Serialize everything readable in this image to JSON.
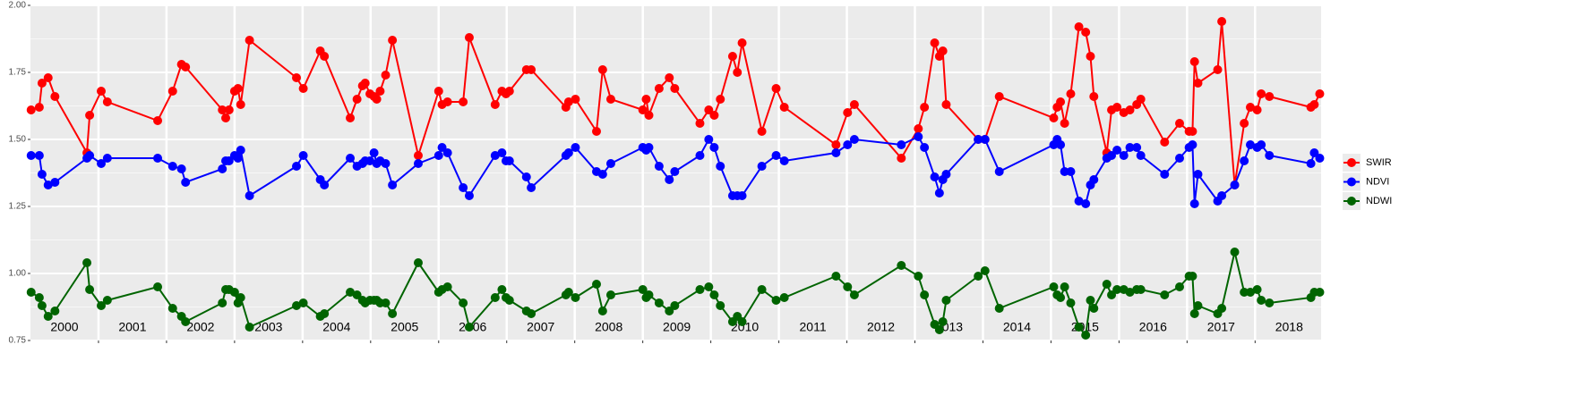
{
  "chart_data": {
    "type": "line",
    "x": [
      2000.01,
      2000.13,
      2000.17,
      2000.26,
      2000.36,
      2000.83,
      2000.87,
      2001.04,
      2001.13,
      2001.87,
      2002.09,
      2002.22,
      2002.28,
      2002.82,
      2002.87,
      2002.92,
      2003.0,
      2003.05,
      2003.09,
      2003.22,
      2003.91,
      2004.01,
      2004.26,
      2004.32,
      2004.7,
      2004.8,
      2004.88,
      2004.92,
      2004.99,
      2005.05,
      2005.09,
      2005.14,
      2005.22,
      2005.32,
      2005.7,
      2006.0,
      2006.05,
      2006.13,
      2006.36,
      2006.45,
      2006.83,
      2006.93,
      2006.99,
      2007.04,
      2007.29,
      2007.36,
      2007.87,
      2007.91,
      2008.01,
      2008.32,
      2008.41,
      2008.53,
      2009.0,
      2009.05,
      2009.09,
      2009.24,
      2009.39,
      2009.47,
      2009.84,
      2009.97,
      2010.05,
      2010.14,
      2010.32,
      2010.39,
      2010.46,
      2010.75,
      2010.96,
      2011.08,
      2011.84,
      2012.01,
      2012.11,
      2012.8,
      2013.05,
      2013.14,
      2013.29,
      2013.36,
      2013.41,
      2013.46,
      2013.93,
      2014.03,
      2014.24,
      2015.04,
      2015.09,
      2015.14,
      2015.2,
      2015.29,
      2015.41,
      2015.51,
      2015.58,
      2015.63,
      2015.82,
      2015.89,
      2015.97,
      2016.07,
      2016.16,
      2016.26,
      2016.32,
      2016.67,
      2016.89,
      2017.03,
      2017.08,
      2017.11,
      2017.16,
      2017.45,
      2017.51,
      2017.7,
      2017.84,
      2017.93,
      2018.03,
      2018.09,
      2018.21,
      2018.82,
      2018.87,
      2018.95
    ],
    "series": [
      {
        "name": "SWIR",
        "color": "#ff0000",
        "values": [
          1.61,
          1.62,
          1.71,
          1.73,
          1.66,
          1.45,
          1.59,
          1.68,
          1.64,
          1.57,
          1.68,
          1.78,
          1.77,
          1.61,
          1.58,
          1.61,
          1.68,
          1.69,
          1.63,
          1.87,
          1.73,
          1.69,
          1.83,
          1.81,
          1.58,
          1.65,
          1.7,
          1.71,
          1.67,
          1.66,
          1.65,
          1.68,
          1.74,
          1.87,
          1.44,
          1.68,
          1.63,
          1.64,
          1.64,
          1.88,
          1.63,
          1.68,
          1.67,
          1.68,
          1.76,
          1.76,
          1.62,
          1.64,
          1.65,
          1.53,
          1.76,
          1.65,
          1.61,
          1.65,
          1.59,
          1.69,
          1.73,
          1.69,
          1.56,
          1.61,
          1.59,
          1.65,
          1.81,
          1.75,
          1.86,
          1.53,
          1.69,
          1.62,
          1.48,
          1.6,
          1.63,
          1.43,
          1.54,
          1.62,
          1.86,
          1.81,
          1.83,
          1.63,
          1.5,
          1.5,
          1.66,
          1.58,
          1.62,
          1.64,
          1.56,
          1.67,
          1.92,
          1.9,
          1.81,
          1.66,
          1.45,
          1.61,
          1.62,
          1.6,
          1.61,
          1.63,
          1.65,
          1.49,
          1.56,
          1.53,
          1.53,
          1.79,
          1.71,
          1.76,
          1.94,
          1.33,
          1.56,
          1.62,
          1.61,
          1.67,
          1.66,
          1.62,
          1.63,
          1.67
        ]
      },
      {
        "name": "NDVI",
        "color": "#0000ff",
        "values": [
          1.44,
          1.44,
          1.37,
          1.33,
          1.34,
          1.43,
          1.44,
          1.41,
          1.43,
          1.43,
          1.4,
          1.39,
          1.34,
          1.39,
          1.42,
          1.42,
          1.44,
          1.43,
          1.46,
          1.29,
          1.4,
          1.44,
          1.35,
          1.33,
          1.43,
          1.4,
          1.41,
          1.42,
          1.42,
          1.45,
          1.41,
          1.42,
          1.41,
          1.33,
          1.41,
          1.44,
          1.47,
          1.45,
          1.32,
          1.29,
          1.44,
          1.45,
          1.42,
          1.42,
          1.36,
          1.32,
          1.44,
          1.45,
          1.47,
          1.38,
          1.37,
          1.41,
          1.47,
          1.46,
          1.47,
          1.4,
          1.35,
          1.38,
          1.44,
          1.5,
          1.47,
          1.4,
          1.29,
          1.29,
          1.29,
          1.4,
          1.44,
          1.42,
          1.45,
          1.48,
          1.5,
          1.48,
          1.51,
          1.47,
          1.36,
          1.3,
          1.35,
          1.37,
          1.5,
          1.5,
          1.38,
          1.48,
          1.5,
          1.48,
          1.38,
          1.38,
          1.27,
          1.26,
          1.33,
          1.35,
          1.43,
          1.44,
          1.46,
          1.44,
          1.47,
          1.47,
          1.44,
          1.37,
          1.43,
          1.47,
          1.48,
          1.26,
          1.37,
          1.27,
          1.29,
          1.33,
          1.42,
          1.48,
          1.47,
          1.48,
          1.44,
          1.41,
          1.45,
          1.43
        ]
      },
      {
        "name": "NDWI",
        "color": "#006400",
        "values": [
          0.93,
          0.91,
          0.88,
          0.84,
          0.86,
          1.04,
          0.94,
          0.88,
          0.9,
          0.95,
          0.87,
          0.84,
          0.82,
          0.89,
          0.94,
          0.94,
          0.93,
          0.89,
          0.91,
          0.8,
          0.88,
          0.89,
          0.84,
          0.85,
          0.93,
          0.92,
          0.9,
          0.89,
          0.9,
          0.9,
          0.9,
          0.89,
          0.89,
          0.85,
          1.04,
          0.93,
          0.94,
          0.95,
          0.89,
          0.8,
          0.91,
          0.94,
          0.91,
          0.9,
          0.86,
          0.85,
          0.92,
          0.93,
          0.91,
          0.96,
          0.86,
          0.92,
          0.94,
          0.91,
          0.92,
          0.89,
          0.86,
          0.88,
          0.94,
          0.95,
          0.92,
          0.88,
          0.82,
          0.84,
          0.82,
          0.94,
          0.9,
          0.91,
          0.99,
          0.95,
          0.92,
          1.03,
          0.99,
          0.92,
          0.81,
          0.79,
          0.82,
          0.9,
          0.99,
          1.01,
          0.87,
          0.95,
          0.92,
          0.91,
          0.95,
          0.89,
          0.8,
          0.77,
          0.9,
          0.87,
          0.96,
          0.92,
          0.94,
          0.94,
          0.93,
          0.94,
          0.94,
          0.92,
          0.95,
          0.99,
          0.99,
          0.85,
          0.88,
          0.85,
          0.87,
          1.08,
          0.93,
          0.93,
          0.94,
          0.9,
          0.89,
          0.91,
          0.93,
          0.93
        ]
      }
    ],
    "xlim": [
      2000,
      2018.97
    ],
    "xticks": [
      {
        "value": 2000.5,
        "label": "2000"
      },
      {
        "value": 2001.5,
        "label": "2001"
      },
      {
        "value": 2002.5,
        "label": "2002"
      },
      {
        "value": 2003.5,
        "label": "2003"
      },
      {
        "value": 2004.5,
        "label": "2004"
      },
      {
        "value": 2005.5,
        "label": "2005"
      },
      {
        "value": 2006.5,
        "label": "2006"
      },
      {
        "value": 2007.5,
        "label": "2007"
      },
      {
        "value": 2008.5,
        "label": "2008"
      },
      {
        "value": 2009.5,
        "label": "2009"
      },
      {
        "value": 2010.5,
        "label": "2010"
      },
      {
        "value": 2011.5,
        "label": "2011"
      },
      {
        "value": 2012.5,
        "label": "2012"
      },
      {
        "value": 2013.5,
        "label": "2013"
      },
      {
        "value": 2014.5,
        "label": "2014"
      },
      {
        "value": 2015.5,
        "label": "2015"
      },
      {
        "value": 2016.5,
        "label": "2016"
      },
      {
        "value": 2017.5,
        "label": "2017"
      },
      {
        "value": 2018.5,
        "label": "2018"
      }
    ],
    "xgrid": [
      2001,
      2002,
      2003,
      2004,
      2005,
      2006,
      2007,
      2008,
      2009,
      2010,
      2011,
      2012,
      2013,
      2014,
      2015,
      2016,
      2017,
      2018
    ],
    "ylim": [
      0.75,
      2.0
    ],
    "yticks": [
      {
        "value": 0.75,
        "label": "0.75"
      },
      {
        "value": 1.0,
        "label": "1.00"
      },
      {
        "value": 1.25,
        "label": "1.25"
      },
      {
        "value": 1.5,
        "label": "1.50"
      },
      {
        "value": 1.75,
        "label": "1.75"
      },
      {
        "value": 2.0,
        "label": "2.00"
      }
    ],
    "grid": true,
    "legend": "right"
  }
}
